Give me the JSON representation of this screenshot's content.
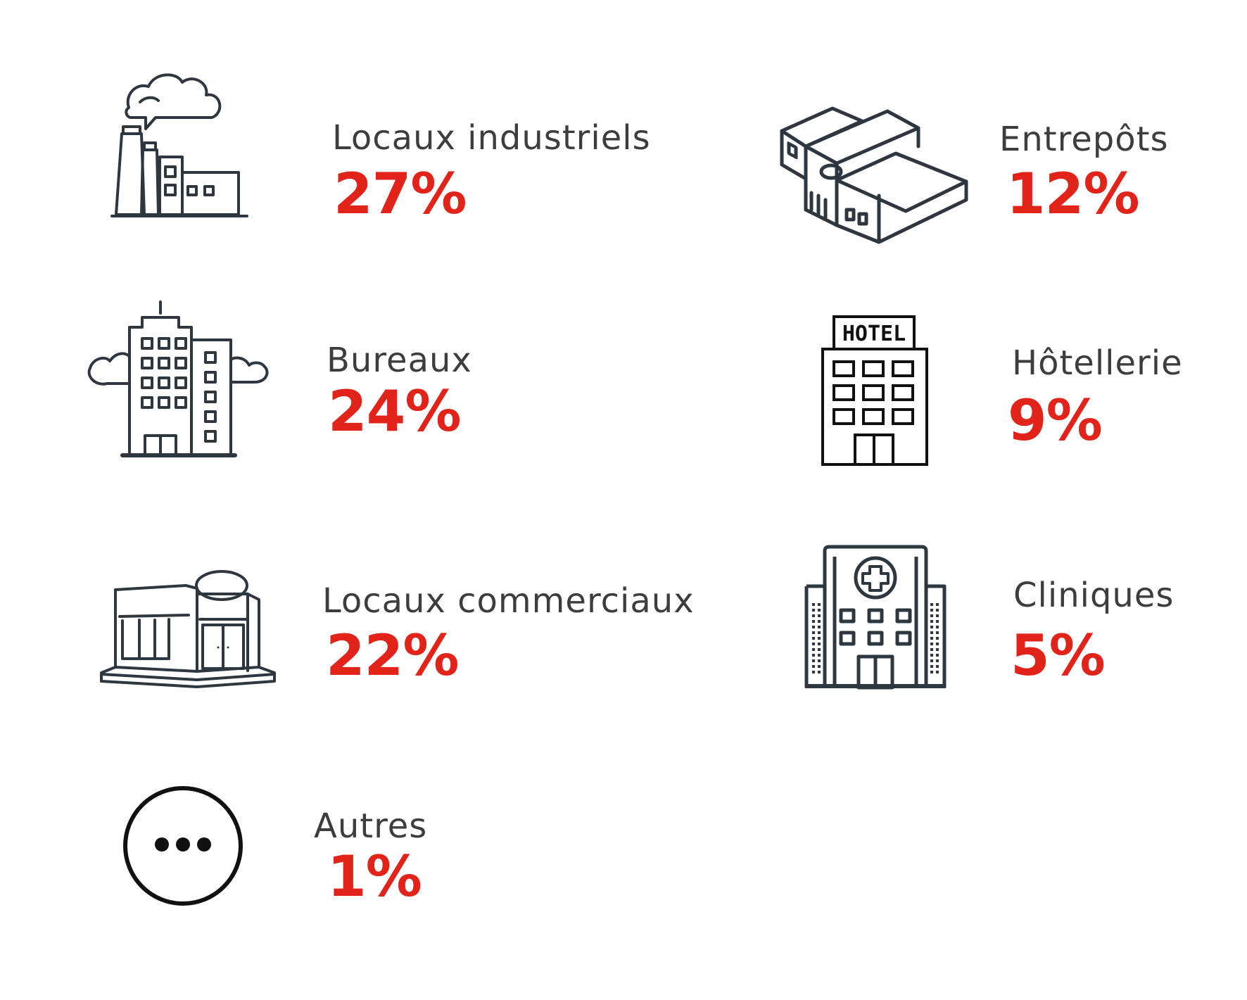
{
  "accent_color": "#e2231a",
  "items": [
    {
      "label": "Locaux industriels",
      "value": "27%",
      "icon": "factory-icon"
    },
    {
      "label": "Bureaux",
      "value": "24%",
      "icon": "office-building-icon"
    },
    {
      "label": "Locaux commerciaux",
      "value": "22%",
      "icon": "shop-icon"
    },
    {
      "label": "Autres",
      "value": "1%",
      "icon": "more-icon"
    },
    {
      "label": "Entrepôts",
      "value": "12%",
      "icon": "warehouse-icon"
    },
    {
      "label": "Hôtellerie",
      "value": "9%",
      "icon": "hotel-icon"
    },
    {
      "label": "Cliniques",
      "value": "5%",
      "icon": "clinic-icon"
    }
  ],
  "hotel_sign": "HOTEL"
}
